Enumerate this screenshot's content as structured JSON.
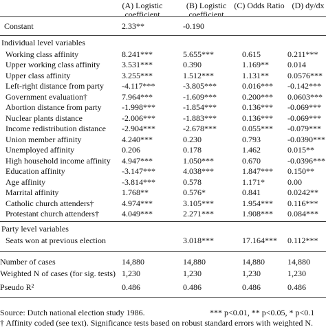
{
  "header": {
    "columns": [
      "(A) Logistic coefficient",
      "(B) Logistic coefficient",
      "(C) Odds Ratio",
      "(D) dy/dx"
    ]
  },
  "table": {
    "rows": [
      {
        "label": "Constant",
        "cells": [
          "2.33**",
          "-0.190",
          null,
          null
        ]
      },
      {
        "label": "Individual level variables"
      },
      {
        "label": "Working class affinity",
        "cells": [
          "8.241***",
          "5.655***",
          "0.615",
          "0.211***"
        ]
      },
      {
        "label": "Upper working class affinity",
        "cells": [
          "3.531***",
          "0.390",
          "1.169**",
          "0.014"
        ]
      },
      {
        "label": "Upper class affinity",
        "cells": [
          "3.255***",
          "1.512***",
          "1.131**",
          "0.0576***"
        ]
      },
      {
        "label": "Left-right distance from party",
        "cells": [
          "-4.117***",
          "-3.805***",
          "0.016***",
          "-0.142***"
        ]
      },
      {
        "label": "Government evaluation†",
        "cells": [
          "7.964***",
          "-1.609***",
          "0.200***",
          "0.0603***"
        ]
      },
      {
        "label": "Abortion distance from party",
        "cells": [
          "-1.998***",
          "-1.854***",
          "0.136***",
          "-0.069***"
        ]
      },
      {
        "label": "Nuclear plants distance",
        "cells": [
          "-2.006***",
          "-1.883***",
          "0.136***",
          "-0.069***"
        ]
      },
      {
        "label": "Income redistribution distance",
        "cells": [
          "-2.904***",
          "-2.678***",
          "0.055***",
          "-0.079***"
        ]
      },
      {
        "label": "Union member affinity",
        "cells": [
          "4.240***",
          "0.230",
          "0.793",
          "-0.0390***"
        ]
      },
      {
        "label": "Unemployed affinity",
        "cells": [
          "0.206",
          "0.178",
          "1.462",
          "0.015**"
        ]
      },
      {
        "label": "High household income affinity",
        "cells": [
          "4.947***",
          "1.050***",
          "0.670",
          "-0.0396***"
        ]
      },
      {
        "label": "Education affinity",
        "cells": [
          "-3.147***",
          "4.038***",
          "1.847***",
          "0.150**"
        ]
      },
      {
        "label": "Age affinity",
        "cells": [
          "-3.814***",
          "0.578",
          "1.171*",
          "0.00"
        ]
      },
      {
        "label": "Marrital affinity",
        "cells": [
          "1.768**",
          "0.576*",
          "0.841",
          "0.0242**"
        ]
      },
      {
        "label": "Catholic church attenders†",
        "cells": [
          "4.974***",
          "3.105***",
          "1.954***",
          "0.116***"
        ]
      },
      {
        "label": "Protestant church attenders†",
        "cells": [
          "4.049***",
          "2.271***",
          "1.908***",
          "0.084***"
        ]
      },
      {
        "label": "Party level variables"
      },
      {
        "label": "Seats won at previous election",
        "cells": [
          null,
          "3.018***",
          "17.164***",
          "0.112***"
        ]
      },
      {
        "label": "Number of cases",
        "cells": [
          "14,880",
          "14,880",
          "14,880",
          "14,880"
        ]
      },
      {
        "label": "Weighted N of cases (for sig. tests)",
        "cells": [
          "1,230",
          "1,230",
          "1,230",
          "1,230"
        ]
      },
      {
        "label": "Pseudo R²",
        "cells": [
          "0.486",
          "0.486",
          "0.486",
          "0.486"
        ]
      }
    ]
  },
  "notes": {
    "source": "Source: Dutch national election study 1986.",
    "significance": "*** p<0.01, ** p<0.05, * p<0.1",
    "dagger": "† Affinity coded (see text). Significance tests based on robust standard errors with weighted N."
  }
}
